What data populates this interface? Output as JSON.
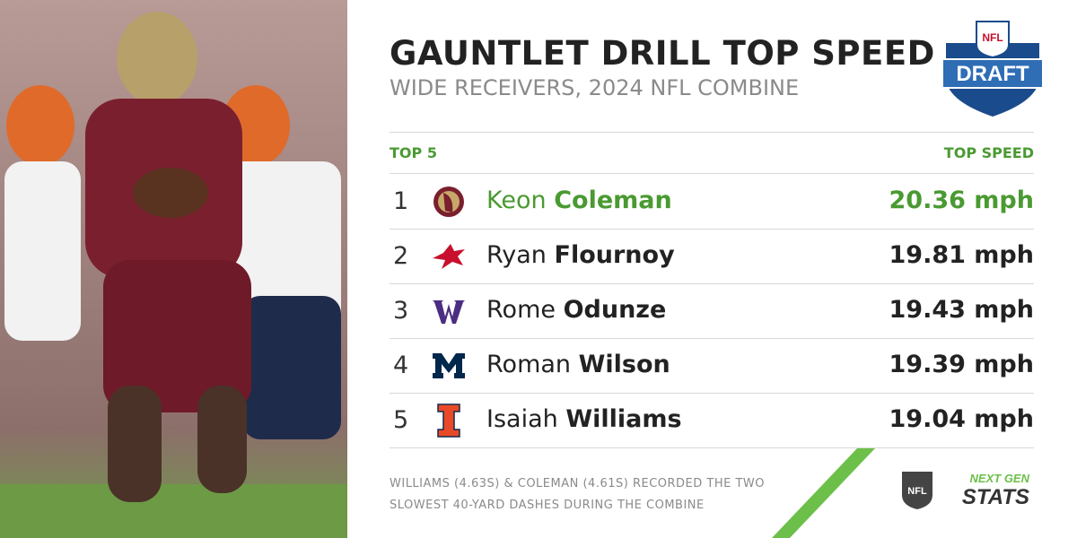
{
  "header": {
    "title": "GAUNTLET DRILL TOP SPEED",
    "subtitle": "WIDE RECEIVERS, 2024 NFL COMBINE"
  },
  "draft_logo": {
    "league": "NFL",
    "label": "DRAFT"
  },
  "table": {
    "columns": [
      "TOP 5",
      "TOP SPEED"
    ],
    "rows": [
      {
        "rank": 1,
        "first": "Keon",
        "last": "Coleman",
        "speed": "20.36 mph",
        "highlight": true
      },
      {
        "rank": 2,
        "first": "Ryan",
        "last": "Flournoy",
        "speed": "19.81 mph",
        "highlight": false
      },
      {
        "rank": 3,
        "first": "Rome",
        "last": "Odunze",
        "speed": "19.43 mph",
        "highlight": false
      },
      {
        "rank": 4,
        "first": "Roman",
        "last": "Wilson",
        "speed": "19.39 mph",
        "highlight": false
      },
      {
        "rank": 5,
        "first": "Isaiah",
        "last": "Williams",
        "speed": "19.04 mph",
        "highlight": false
      }
    ]
  },
  "footnote": "WILLIAMS (4.63S) & COLEMAN (4.61S) RECORDED THE TWO SLOWEST 40-YARD DASHES DURING THE COMBINE",
  "brand": {
    "league": "NFL",
    "line1": "NEXT GEN",
    "line2": "STATS"
  }
}
